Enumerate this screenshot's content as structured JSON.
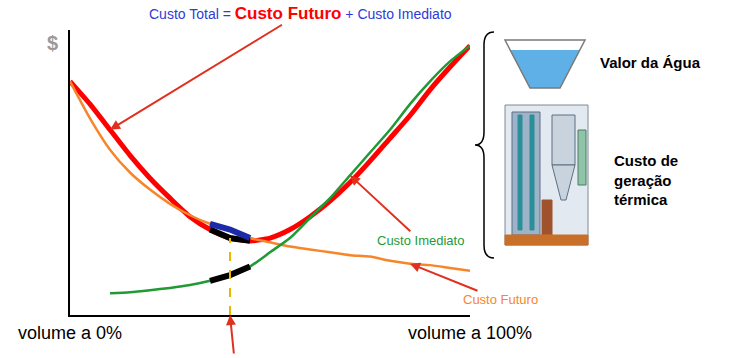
{
  "chart_data": {
    "type": "line",
    "title": "Custo Total = Custo Futuro + Custo Imediato",
    "ylabel": "$",
    "x": [
      0,
      5,
      10,
      15,
      20,
      25,
      30,
      35,
      40,
      45,
      50,
      55,
      60,
      65,
      70,
      75,
      80,
      85,
      90,
      95,
      100
    ],
    "series": [
      {
        "name": "Custo Total",
        "color": "#ff0000",
        "values": [
          82,
          74,
          65,
          56,
          48,
          41,
          34.5,
          30,
          27,
          26,
          27,
          30,
          34.5,
          40,
          46.5,
          54,
          62,
          70,
          79,
          87,
          94.5
        ]
      },
      {
        "name": "Custo Futuro",
        "color": "#f7862b",
        "values": [
          82,
          69,
          58,
          50,
          44,
          39,
          35,
          32,
          30,
          27,
          25.5,
          24,
          23,
          22,
          21,
          20.5,
          19,
          18,
          17.5,
          16.5,
          15.5
        ]
      },
      {
        "name": "Custo Imediato",
        "color": "#1f9a35",
        "values": [
          null,
          null,
          7.6,
          8,
          8.7,
          9.5,
          10.5,
          12,
          14,
          17,
          22,
          27,
          34,
          41,
          49,
          57,
          65,
          74,
          82,
          89,
          94.5
        ]
      }
    ],
    "optimum": 40,
    "xlim": [
      0,
      100
    ],
    "xticks": [
      {
        "value": 0,
        "label": "volume a 0%"
      },
      {
        "value": 100,
        "label": "volume a 100%"
      }
    ],
    "ylim": [
      0,
      100
    ],
    "tick_labels": "x",
    "grid": false
  },
  "side_panel": {
    "labels": [
      "Valor da Água",
      "Custo de geração térmica"
    ]
  }
}
